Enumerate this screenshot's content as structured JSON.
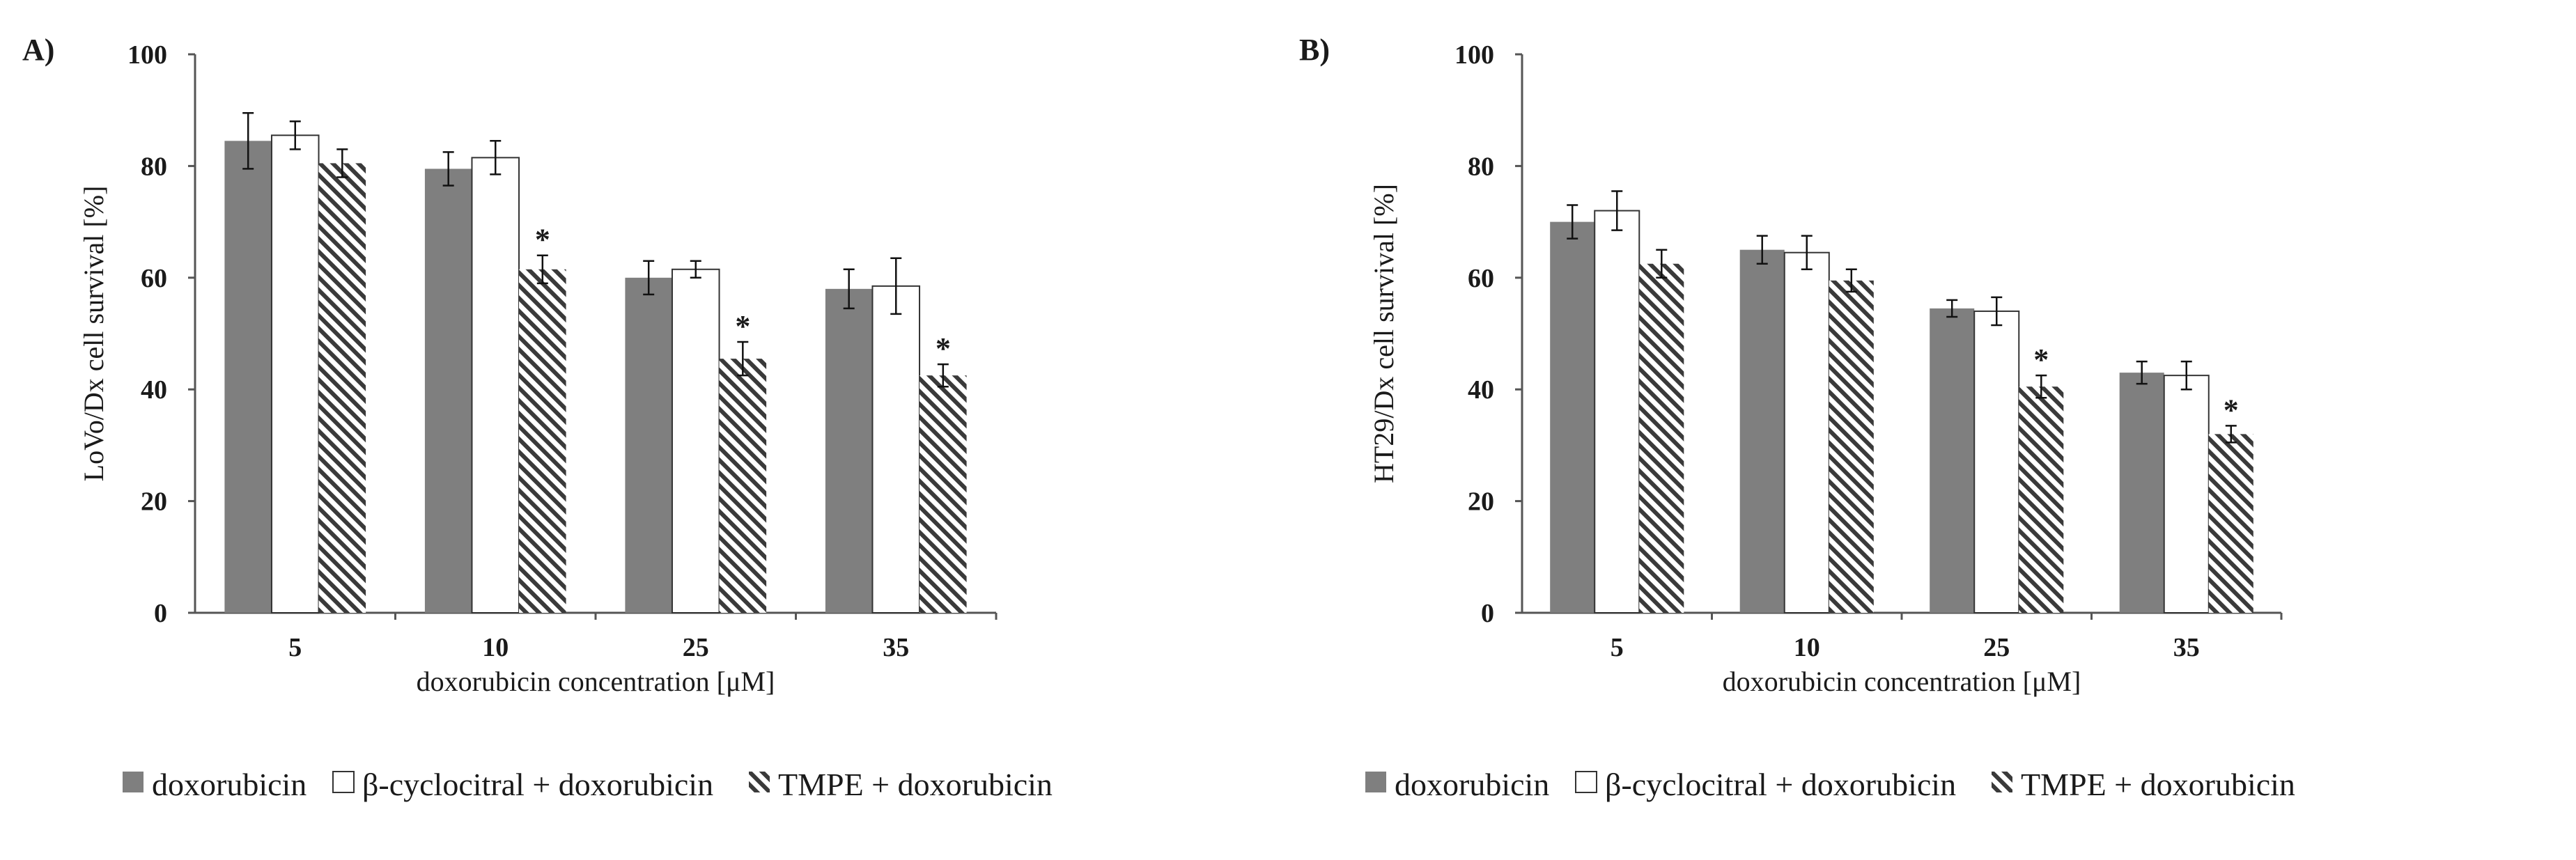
{
  "chart_data": [
    {
      "type": "bar",
      "panel_label": "A)",
      "title": "",
      "xlabel": "doxorubicin concentration [μM]",
      "ylabel": "LoVo/Dx cell survival [%]",
      "ylim": [
        0,
        100
      ],
      "yticks": [
        "0",
        "20",
        "40",
        "60",
        "80",
        "100"
      ],
      "categories": [
        "5",
        "10",
        "25",
        "35"
      ],
      "series": [
        {
          "name": "doxorubicin",
          "values": [
            84.5,
            79.5,
            60,
            58
          ],
          "errors": [
            5,
            3,
            3,
            3.5
          ],
          "significant": [
            false,
            false,
            false,
            false
          ]
        },
        {
          "name": "β-cyclocitral + doxorubicin",
          "values": [
            85.5,
            81.5,
            61.5,
            58.5
          ],
          "errors": [
            2.5,
            3,
            1.5,
            5
          ],
          "significant": [
            false,
            false,
            false,
            false
          ]
        },
        {
          "name": "TMPE + doxorubicin",
          "values": [
            80.5,
            61.5,
            45.5,
            42.5
          ],
          "errors": [
            2.5,
            2.5,
            3,
            2
          ],
          "significant": [
            false,
            true,
            true,
            true
          ]
        }
      ],
      "significance_marker": "*"
    },
    {
      "type": "bar",
      "panel_label": "B)",
      "title": "",
      "xlabel": "doxorubicin concentration [μM]",
      "ylabel": "HT29/Dx cell survival [%]",
      "ylim": [
        0,
        100
      ],
      "yticks": [
        "0",
        "20",
        "40",
        "60",
        "80",
        "100"
      ],
      "categories": [
        "5",
        "10",
        "25",
        "35"
      ],
      "series": [
        {
          "name": "doxorubicin",
          "values": [
            70,
            65,
            54.5,
            43
          ],
          "errors": [
            3,
            2.5,
            1.5,
            2
          ],
          "significant": [
            false,
            false,
            false,
            false
          ]
        },
        {
          "name": "β-cyclocitral + doxorubicin",
          "values": [
            72,
            64.5,
            54,
            42.5
          ],
          "errors": [
            3.5,
            3,
            2.5,
            2.5
          ],
          "significant": [
            false,
            false,
            false,
            false
          ]
        },
        {
          "name": "TMPE + doxorubicin",
          "values": [
            62.5,
            59.5,
            40.5,
            32
          ],
          "errors": [
            2.5,
            2,
            2,
            1.5
          ],
          "significant": [
            false,
            false,
            true,
            true
          ]
        }
      ],
      "significance_marker": "*"
    }
  ],
  "colors": {
    "doxorubicin_fill": "#7f7f7f",
    "cyclocitral_fill": "#ffffff",
    "tmpe_hatch": "#3a3a3a",
    "axis": "#555555"
  }
}
